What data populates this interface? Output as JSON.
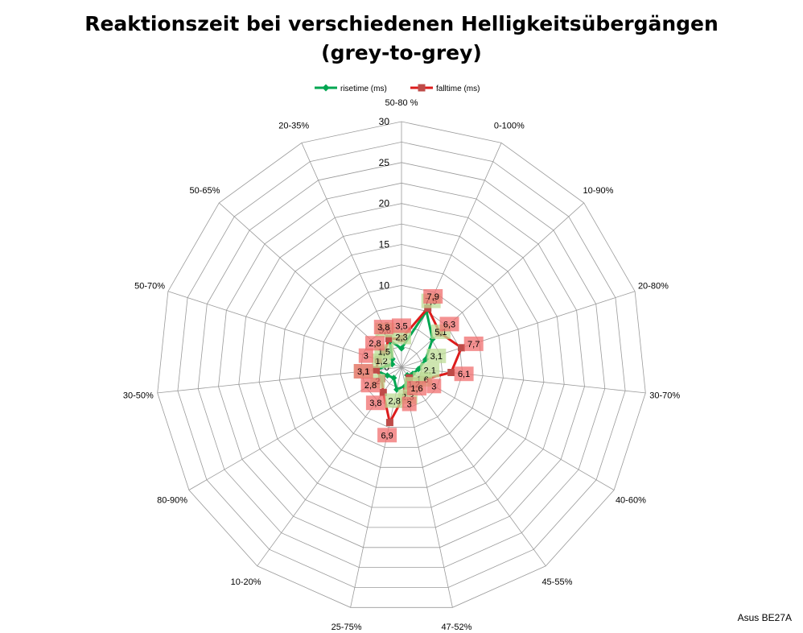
{
  "chart_data": {
    "type": "radar",
    "title": "Reaktionszeit bei verschiedenen Helligkeitsübergängen",
    "subtitle": "(grey-to-grey)",
    "categories": [
      "50-80 %",
      "0-100%",
      "10-90%",
      "20-80%",
      "30-70%",
      "40-60%",
      "45-55%",
      "47-52%",
      "25-75%",
      "10-20%",
      "80-90%",
      "30-50%",
      "50-70%",
      "50-65%",
      "20-35%"
    ],
    "series": [
      {
        "name": "risetime (ms)",
        "color": "#00a651",
        "marker": "diamond",
        "values": [
          2.3,
          7.5,
          5.1,
          3.1,
          2.1,
          1.6,
          1.2,
          2.3,
          2.8,
          1.6,
          2.0,
          3.3,
          1.2,
          1.5,
          3.6
        ]
      },
      {
        "name": "falltime (ms)",
        "color": "#dd1c1c",
        "marker": "square",
        "values": [
          3.5,
          7.9,
          6.3,
          7.7,
          6.1,
          3.0,
          1.6,
          3.0,
          6.9,
          3.8,
          2.8,
          3.1,
          3.0,
          2.8,
          3.8
        ]
      }
    ],
    "data_labels": {
      "risetime": [
        "2,3",
        "7,5",
        "5,1",
        "3,1",
        "2,1",
        "1,6",
        "1,2",
        "2,3",
        "2,8",
        "",
        "2",
        "3,3",
        "1,2",
        "1,5",
        "3,6"
      ],
      "falltime": [
        "3,5",
        "7,9",
        "6,3",
        "7,7",
        "6,1",
        "3",
        "1,6",
        "3",
        "6,9",
        "3,8",
        "2,8",
        "3,1",
        "3",
        "2,8",
        "3,8"
      ]
    },
    "r_axis": {
      "min": 0,
      "max": 30,
      "step": 5,
      "ticks": [
        "0",
        "5",
        "10",
        "15",
        "20",
        "25",
        "30"
      ]
    },
    "legend_position": "top",
    "grid": true
  },
  "credit": "Asus BE27A"
}
